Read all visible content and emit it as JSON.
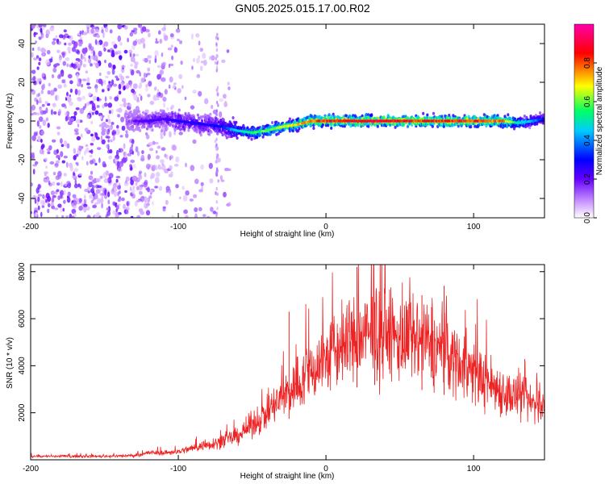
{
  "title": "GN05.2025.015.17.00.R02",
  "colors": {
    "signal": "#ee2222",
    "background": "#ffffff",
    "axis": "#000000"
  },
  "chart_data": [
    {
      "type": "heatmap",
      "title": "",
      "xlabel": "Height of straight line (km)",
      "ylabel": "Frequency (Hz)",
      "xlim": [
        -200,
        148
      ],
      "ylim": [
        -50,
        50
      ],
      "x_ticks": [
        -200,
        -100,
        0,
        100
      ],
      "y_ticks": [
        40,
        20,
        0,
        -20,
        -40
      ],
      "colorbar": {
        "label": "Normalized spectral amplitude",
        "range": [
          0,
          1
        ],
        "ticks": [
          "0.0",
          "0.2",
          "0.4",
          "0.6",
          "0.8"
        ],
        "tick_values": [
          0,
          0.2,
          0.4,
          0.6,
          0.8
        ],
        "colormap": [
          "#ffffff",
          "#cc99ff",
          "#6600ff",
          "#0000ff",
          "#00ccff",
          "#00ff66",
          "#ffff00",
          "#ff0000",
          "#ff00aa"
        ]
      },
      "ridge": {
        "x": [
          -130,
          -120,
          -110,
          -100,
          -90,
          -80,
          -70,
          -60,
          -50,
          -40,
          -30,
          -20,
          -10,
          0,
          20,
          40,
          60,
          80,
          100,
          120,
          130,
          140,
          148
        ],
        "frequency": [
          0,
          0,
          1,
          0,
          -1,
          -2,
          -3,
          -5,
          -6,
          -5,
          -3,
          -2,
          0,
          0,
          0,
          0,
          0,
          0,
          0,
          0,
          -1,
          0,
          1
        ],
        "amplitude": [
          0.25,
          0.3,
          0.3,
          0.35,
          0.35,
          0.35,
          0.4,
          0.55,
          0.65,
          0.7,
          0.75,
          0.8,
          0.85,
          0.9,
          0.95,
          0.95,
          0.9,
          0.9,
          0.9,
          0.85,
          0.6,
          0.5,
          0.4
        ]
      },
      "noise_region_x": [
        -200,
        -65
      ]
    },
    {
      "type": "line",
      "title": "",
      "xlabel": "Height of straight line (km)",
      "ylabel": "SNR (10 * v/v)",
      "xlim": [
        -200,
        148
      ],
      "ylim": [
        0,
        8300
      ],
      "x_ticks": [
        -200,
        -100,
        0,
        100
      ],
      "y_ticks": [
        2000,
        4000,
        6000,
        8000
      ],
      "series": [
        {
          "color": "#ee2222",
          "envelope": {
            "x": [
              -200,
              -150,
              -130,
              -120,
              -110,
              -100,
              -90,
              -80,
              -70,
              -60,
              -50,
              -40,
              -30,
              -20,
              -10,
              0,
              10,
              20,
              30,
              40,
              50,
              60,
              70,
              80,
              90,
              100,
              110,
              120,
              130,
              140,
              148
            ],
            "mean": [
              150,
              150,
              180,
              300,
              300,
              350,
              500,
              650,
              800,
              1000,
              1500,
              2000,
              2600,
              3200,
              3800,
              4300,
              4800,
              5100,
              5300,
              5300,
              5100,
              5000,
              4900,
              4600,
              4200,
              3700,
              3300,
              2900,
              2600,
              2400,
              2300
            ]
          },
          "peaks": [
            {
              "x": 21,
              "y": 8200
            },
            {
              "x": 80,
              "y": 7400
            },
            {
              "x": 33,
              "y": 6700
            },
            {
              "x": -25,
              "y": 6300
            },
            {
              "x": 65,
              "y": 7000
            }
          ]
        }
      ]
    }
  ]
}
